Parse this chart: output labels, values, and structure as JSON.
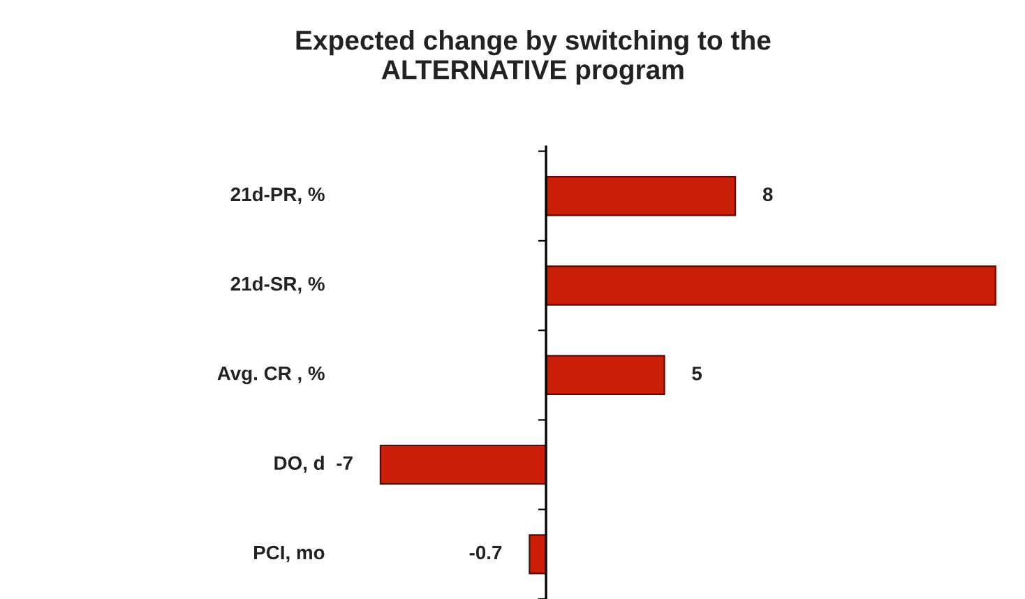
{
  "chart_data": {
    "type": "bar",
    "orientation": "horizontal",
    "title": "Expected change by switching to the\nALTERNATIVE program",
    "categories": [
      "21d-PR, %",
      "21d-SR, %",
      "Avg. CR , %",
      "DO, d",
      "PCI, mo"
    ],
    "values": [
      8,
      19,
      5,
      -7,
      -0.7
    ],
    "value_labels": [
      "8",
      null,
      "5",
      "-7",
      "-0.7"
    ],
    "color": "#cc1f0a",
    "grid": false,
    "legend": false
  }
}
